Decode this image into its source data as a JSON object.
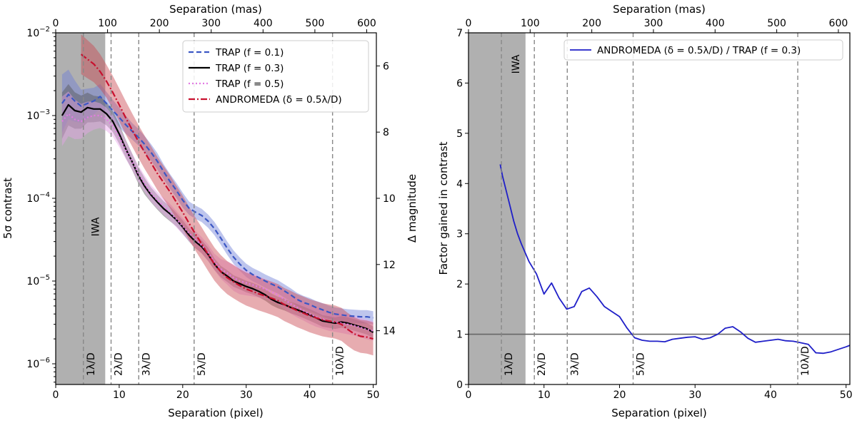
{
  "chart_data": [
    {
      "type": "line",
      "name": "contrast-curves",
      "xlabel": "Separation (pixel)",
      "ylabel": "5σ contrast",
      "y2label": "Δ magnitude",
      "x2label": "Separation (mas)",
      "xlim": [
        0,
        50.5
      ],
      "ylim_log10": [
        -6.25,
        -2
      ],
      "x_ticks": [
        "0",
        "10",
        "20",
        "30",
        "40",
        "50"
      ],
      "x_tick_values": [
        0,
        10,
        20,
        30,
        40,
        50
      ],
      "x2_ticks": [
        "0",
        "100",
        "200",
        "300",
        "400",
        "500",
        "600"
      ],
      "x2_tick_values": [
        0,
        100,
        200,
        300,
        400,
        500,
        600
      ],
      "mas_per_pixel": 12.25,
      "y_ticks": [
        {
          "exp": -2,
          "base": "10",
          "sup": "−2"
        },
        {
          "exp": -3,
          "base": "10",
          "sup": "−3"
        },
        {
          "exp": -4,
          "base": "10",
          "sup": "−4"
        },
        {
          "exp": -5,
          "base": "10",
          "sup": "−5"
        },
        {
          "exp": -6,
          "base": "10",
          "sup": "−6"
        }
      ],
      "y2_ticks": [
        "6",
        "8",
        "10",
        "12",
        "14"
      ],
      "y2_tick_values": [
        6,
        8,
        10,
        12,
        14
      ],
      "iwa": {
        "label": "IWA",
        "x_start": 0,
        "x_end": 7.8
      },
      "lambda_lines": [
        {
          "label": "1λ/D",
          "x": 4.36
        },
        {
          "label": "2λ/D",
          "x": 8.72
        },
        {
          "label": "3λ/D",
          "x": 13.08
        },
        {
          "label": "5λ/D",
          "x": 21.8
        },
        {
          "label": "10λ/D",
          "x": 43.6
        }
      ],
      "series": [
        {
          "name": "TRAP (f = 0.1)",
          "legend": "TRAP (f = 0.1)",
          "color": "#3b57c4",
          "band_color": "#6f7fd8",
          "dash": "7,4",
          "x": [
            1,
            2,
            3,
            4,
            5,
            6,
            7,
            8,
            9,
            10,
            11,
            12,
            13,
            14,
            15,
            16,
            17,
            18,
            19,
            20,
            21,
            22,
            23,
            24,
            25,
            26,
            27,
            28,
            29,
            30,
            31,
            32,
            33,
            34,
            35,
            36,
            37,
            38,
            39,
            40,
            41,
            42,
            43,
            44,
            45,
            46,
            47,
            48,
            49,
            50
          ],
          "y": [
            0.0014,
            0.0018,
            0.0015,
            0.0013,
            0.0014,
            0.0015,
            0.0017,
            0.0014,
            0.00115,
            0.00095,
            0.00078,
            0.00065,
            0.00055,
            0.00045,
            0.00036,
            0.00028,
            0.00021,
            0.00016,
            0.000125,
            9.5e-05,
            7.6e-05,
            6.8e-05,
            6.2e-05,
            5.3e-05,
            4.3e-05,
            3.3e-05,
            2.5e-05,
            1.95e-05,
            1.6e-05,
            1.35e-05,
            1.2e-05,
            1.1e-05,
            1e-05,
            9.2e-06,
            8.5e-06,
            7.6e-06,
            6.8e-06,
            6e-06,
            5.5e-06,
            5.2e-06,
            4.8e-06,
            4.5e-06,
            4.2e-06,
            4e-06,
            3.9e-06,
            3.8e-06,
            3.75e-06,
            3.7e-06,
            3.7e-06,
            3.6e-06
          ],
          "band": [
            0.35,
            0.3,
            0.25,
            0.2,
            0.18,
            0.16,
            0.15,
            0.14,
            0.13,
            0.12,
            0.11,
            0.1,
            0.1,
            0.1,
            0.1,
            0.1,
            0.09,
            0.09,
            0.09,
            0.09,
            0.08,
            0.08,
            0.08,
            0.08,
            0.08,
            0.08,
            0.08,
            0.08,
            0.08,
            0.08,
            0.08,
            0.08,
            0.08,
            0.08,
            0.08,
            0.08,
            0.08,
            0.08,
            0.08,
            0.08,
            0.08,
            0.08,
            0.08,
            0.08,
            0.08,
            0.08,
            0.08,
            0.08,
            0.08,
            0.08
          ]
        },
        {
          "name": "TRAP (f = 0.3)",
          "legend": "TRAP (f = 0.3)",
          "color": "#000000",
          "band_color": "#555555",
          "dash": "",
          "x": [
            1,
            2,
            3,
            4,
            5,
            6,
            7,
            8,
            9,
            10,
            11,
            12,
            13,
            14,
            15,
            16,
            17,
            18,
            19,
            20,
            21,
            22,
            23,
            24,
            25,
            26,
            27,
            28,
            29,
            30,
            31,
            32,
            33,
            34,
            35,
            36,
            37,
            38,
            39,
            40,
            41,
            42,
            43,
            44,
            45,
            46,
            47,
            48,
            49,
            50
          ],
          "y": [
            0.001,
            0.00135,
            0.00115,
            0.0011,
            0.00125,
            0.0012,
            0.0012,
            0.00105,
            0.00085,
            0.0006,
            0.0004,
            0.00028,
            0.00019,
            0.00014,
            0.00011,
            9e-05,
            7.5e-05,
            6.5e-05,
            5.5e-05,
            4.5e-05,
            3.6e-05,
            3e-05,
            2.6e-05,
            2.1e-05,
            1.6e-05,
            1.3e-05,
            1.15e-05,
            1e-05,
            9.3e-06,
            8.6e-06,
            8.1e-06,
            7.5e-06,
            6.8e-06,
            6e-06,
            5.5e-06,
            5.2e-06,
            4.8e-06,
            4.5e-06,
            4.2e-06,
            3.9e-06,
            3.6e-06,
            3.3e-06,
            3.2e-06,
            3.1e-06,
            3.2e-06,
            3.1e-06,
            2.95e-06,
            2.8e-06,
            2.65e-06,
            2.4e-06
          ],
          "band": [
            0.28,
            0.25,
            0.22,
            0.2,
            0.18,
            0.16,
            0.15,
            0.14,
            0.13,
            0.12,
            0.11,
            0.1,
            0.1,
            0.1,
            0.09,
            0.09,
            0.09,
            0.09,
            0.08,
            0.08,
            0.08,
            0.08,
            0.08,
            0.08,
            0.07,
            0.07,
            0.07,
            0.07,
            0.07,
            0.07,
            0.07,
            0.07,
            0.07,
            0.07,
            0.07,
            0.07,
            0.07,
            0.07,
            0.07,
            0.07,
            0.07,
            0.07,
            0.07,
            0.07,
            0.07,
            0.07,
            0.07,
            0.07,
            0.07,
            0.07
          ]
        },
        {
          "name": "TRAP (f = 0.5)",
          "legend": "TRAP (f = 0.5)",
          "color": "#e27be3",
          "band_color": "#e8a5ea",
          "dash": "2,3",
          "x": [
            1,
            2,
            3,
            4,
            5,
            6,
            7,
            8,
            9,
            10,
            11,
            12,
            13,
            14,
            15,
            16,
            17,
            18,
            19,
            20,
            21,
            22,
            23,
            24,
            25,
            26,
            27,
            28,
            29,
            30,
            31,
            32,
            33,
            34,
            35,
            36,
            37,
            38,
            39,
            40,
            41,
            42,
            43,
            44,
            45,
            46,
            47,
            48,
            49,
            50
          ],
          "y": [
            0.00085,
            0.00105,
            0.0009,
            0.00085,
            0.00095,
            0.001,
            0.001,
            0.0009,
            0.00075,
            0.00055,
            0.00039,
            0.00028,
            0.0002,
            0.00015,
            0.000115,
            9.5e-05,
            8e-05,
            6.8e-05,
            5.6e-05,
            4.6e-05,
            3.8e-05,
            3.2e-05,
            2.7e-05,
            2.2e-05,
            1.7e-05,
            1.4e-05,
            1.25e-05,
            1.1e-05,
            1e-05,
            9.5e-06,
            9e-06,
            8.5e-06,
            8e-06,
            7.4e-06,
            6.8e-06,
            6e-06,
            5.3e-06,
            4.8e-06,
            4.4e-06,
            4e-06,
            3.7e-06,
            3.5e-06,
            3.3e-06,
            3.2e-06,
            3.1e-06,
            3e-06,
            2.9e-06,
            2.75e-06,
            2.6e-06,
            2.5e-06
          ],
          "band": [
            0.3,
            0.27,
            0.24,
            0.21,
            0.19,
            0.17,
            0.15,
            0.14,
            0.13,
            0.12,
            0.11,
            0.1,
            0.1,
            0.1,
            0.1,
            0.1,
            0.1,
            0.1,
            0.1,
            0.1,
            0.1,
            0.1,
            0.1,
            0.1,
            0.1,
            0.12,
            0.14,
            0.16,
            0.16,
            0.15,
            0.14,
            0.13,
            0.12,
            0.12,
            0.12,
            0.12,
            0.12,
            0.12,
            0.12,
            0.12,
            0.12,
            0.12,
            0.12,
            0.12,
            0.12,
            0.12,
            0.12,
            0.12,
            0.12,
            0.12
          ]
        },
        {
          "name": "ANDROMEDA (delta = 0.5 lambda/D)",
          "legend": "ANDROMEDA (δ = 0.5λ/D)",
          "color": "#c8102e",
          "band_color": "#c9474f",
          "dash": "9,3,2,3",
          "x": [
            4,
            5,
            6,
            7,
            8,
            9,
            10,
            11,
            12,
            13,
            14,
            15,
            16,
            17,
            18,
            19,
            20,
            21,
            22,
            23,
            24,
            25,
            26,
            27,
            28,
            29,
            30,
            31,
            32,
            33,
            34,
            35,
            36,
            37,
            38,
            39,
            40,
            41,
            42,
            43,
            44,
            45,
            46,
            47,
            48,
            49,
            50
          ],
          "y": [
            0.0055,
            0.0048,
            0.0042,
            0.0034,
            0.0026,
            0.0019,
            0.00135,
            0.00095,
            0.00068,
            0.00049,
            0.00036,
            0.00027,
            0.0002,
            0.000155,
            0.00012,
            9e-05,
            6.8e-05,
            5e-05,
            3.7e-05,
            2.8e-05,
            2.1e-05,
            1.6e-05,
            1.3e-05,
            1.1e-05,
            9.8e-06,
            8.8e-06,
            8e-06,
            7.5e-06,
            7e-06,
            6.6e-06,
            6.2e-06,
            5.8e-06,
            5.2e-06,
            4.8e-06,
            4.4e-06,
            4.1e-06,
            3.8e-06,
            3.6e-06,
            3.4e-06,
            3.3e-06,
            3.2e-06,
            3e-06,
            2.6e-06,
            2.3e-06,
            2.15e-06,
            2.1e-06,
            2e-06
          ],
          "band": [
            0.24,
            0.23,
            0.22,
            0.21,
            0.2,
            0.2,
            0.2,
            0.2,
            0.2,
            0.2,
            0.2,
            0.2,
            0.2,
            0.2,
            0.2,
            0.2,
            0.2,
            0.2,
            0.2,
            0.2,
            0.2,
            0.2,
            0.2,
            0.2,
            0.2,
            0.2,
            0.2,
            0.2,
            0.2,
            0.2,
            0.2,
            0.2,
            0.2,
            0.2,
            0.2,
            0.2,
            0.2,
            0.2,
            0.2,
            0.2,
            0.2,
            0.2,
            0.2,
            0.2,
            0.2,
            0.2,
            0.2
          ]
        }
      ]
    },
    {
      "type": "line",
      "name": "gain-factor",
      "xlabel": "Separation (pixel)",
      "ylabel": "Factor gained in contrast",
      "x2label": "Separation (mas)",
      "xlim": [
        0,
        50.5
      ],
      "ylim": [
        0,
        7
      ],
      "x_ticks": [
        "0",
        "10",
        "20",
        "30",
        "40",
        "50"
      ],
      "x_tick_values": [
        0,
        10,
        20,
        30,
        40,
        50
      ],
      "x2_ticks": [
        "0",
        "100",
        "200",
        "300",
        "400",
        "500",
        "600"
      ],
      "x2_tick_values": [
        0,
        100,
        200,
        300,
        400,
        500,
        600
      ],
      "mas_per_pixel": 12.25,
      "y_ticks": [
        "0",
        "1",
        "2",
        "3",
        "4",
        "5",
        "6",
        "7"
      ],
      "y_tick_values": [
        0,
        1,
        2,
        3,
        4,
        5,
        6,
        7
      ],
      "reference_line": 1,
      "iwa": {
        "label": "IWA",
        "x_start": 0,
        "x_end": 7.55
      },
      "lambda_lines": [
        {
          "label": "1λ/D",
          "x": 4.36
        },
        {
          "label": "2λ/D",
          "x": 8.72
        },
        {
          "label": "3λ/D",
          "x": 13.08
        },
        {
          "label": "5λ/D",
          "x": 21.8
        },
        {
          "label": "10λ/D",
          "x": 43.6
        }
      ],
      "series": [
        {
          "name": "ANDROMEDA / TRAP ratio",
          "legend": "ANDROMEDA (δ = 0.5λ/D) / TRAP (f = 0.3)",
          "color": "#1f1fc8",
          "x": [
            4.2,
            4.5,
            5,
            5.5,
            6,
            6.5,
            7,
            8,
            9,
            10,
            11,
            12,
            13,
            14,
            15,
            16,
            17,
            18,
            19,
            20,
            21,
            22,
            23,
            24,
            25,
            26,
            27,
            28,
            29,
            30,
            31,
            32,
            33,
            34,
            35,
            36,
            37,
            38,
            39,
            40,
            41,
            42,
            43,
            44,
            45,
            46,
            47,
            48,
            49,
            50,
            50.5
          ],
          "y": [
            4.38,
            4.15,
            3.85,
            3.55,
            3.25,
            3.0,
            2.8,
            2.45,
            2.2,
            1.8,
            2.02,
            1.72,
            1.5,
            1.55,
            1.85,
            1.92,
            1.75,
            1.55,
            1.45,
            1.35,
            1.12,
            0.93,
            0.88,
            0.86,
            0.86,
            0.85,
            0.9,
            0.92,
            0.94,
            0.95,
            0.9,
            0.93,
            1.0,
            1.12,
            1.15,
            1.05,
            0.92,
            0.84,
            0.86,
            0.88,
            0.9,
            0.87,
            0.86,
            0.83,
            0.8,
            0.63,
            0.62,
            0.65,
            0.7,
            0.75,
            0.78
          ]
        }
      ]
    }
  ]
}
